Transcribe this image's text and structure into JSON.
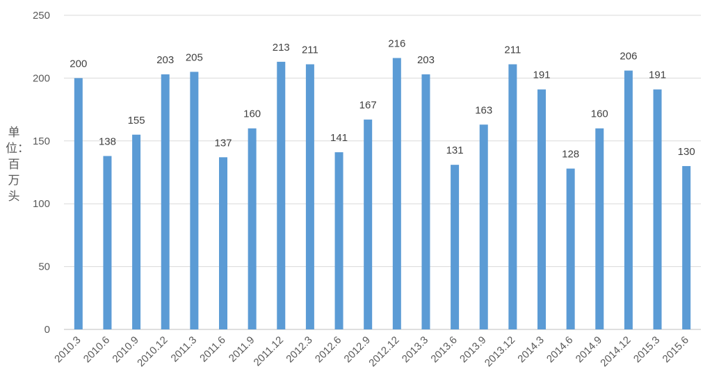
{
  "chart_data": {
    "type": "bar",
    "ylabel": "单位：百万头",
    "xlabel": "",
    "ylim": [
      0,
      250
    ],
    "yticks": [
      0,
      50,
      100,
      150,
      200,
      250
    ],
    "grid": true,
    "legend": "none",
    "categories": [
      "2010.3",
      "2010.6",
      "2010.9",
      "2010.12",
      "2011.3",
      "2011.6",
      "2011.9",
      "2011.12",
      "2012.3",
      "2012.6",
      "2012.9",
      "2012.12",
      "2013.3",
      "2013.6",
      "2013.9",
      "2013.12",
      "2014.3",
      "2014.6",
      "2014.9",
      "2014.12",
      "2015.3",
      "2015.6"
    ],
    "values": [
      200,
      138,
      155,
      203,
      205,
      137,
      160,
      213,
      211,
      141,
      167,
      216,
      203,
      131,
      163,
      211,
      191,
      128,
      160,
      206,
      191,
      130
    ],
    "bar_color": "#5B9BD5",
    "grid_color": "#D9D9D9",
    "text_color": "#595959"
  }
}
